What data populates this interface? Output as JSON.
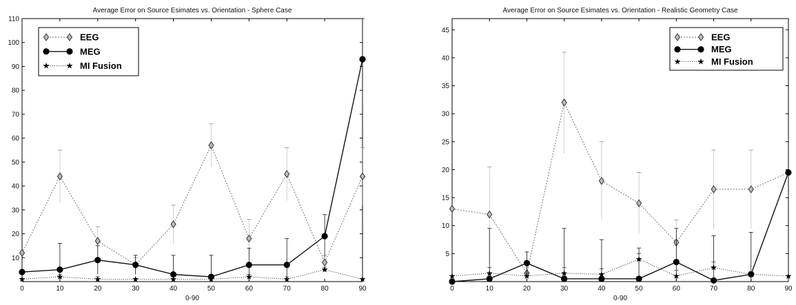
{
  "chart_data": [
    {
      "type": "line",
      "title": "Average Error on Source Esimates vs. Orientation - Sphere Case",
      "xlabel": "0-90",
      "ylabel": "",
      "x": [
        0,
        10,
        20,
        30,
        40,
        50,
        60,
        70,
        80,
        90
      ],
      "xlim": [
        0,
        90
      ],
      "ylim": [
        0,
        110
      ],
      "xticks": [
        "0",
        "10",
        "20",
        "30",
        "40",
        "50",
        "60",
        "70",
        "80",
        "90"
      ],
      "yticks": [
        "10",
        "20",
        "30",
        "40",
        "50",
        "60",
        "70",
        "80",
        "90",
        "100",
        "110"
      ],
      "legend_position": "top-left",
      "series": [
        {
          "name": "EEG",
          "marker": "diamond",
          "values": [
            12,
            44,
            17,
            7,
            24,
            57,
            18,
            45,
            8,
            44
          ],
          "err": [
            0,
            11,
            6,
            3,
            8,
            9,
            8,
            11,
            3,
            12
          ]
        },
        {
          "name": "MEG",
          "marker": "circle",
          "values": [
            4,
            5,
            9,
            7,
            3,
            2,
            7,
            7,
            19,
            93
          ],
          "err": [
            0,
            11,
            6,
            4,
            8,
            9,
            7,
            11,
            9,
            17
          ]
        },
        {
          "name": "MI Fusion",
          "marker": "star",
          "values": [
            1,
            2,
            1,
            1,
            1,
            1,
            2,
            1,
            5,
            1
          ],
          "err": [
            0,
            1,
            1,
            0,
            1,
            1,
            1,
            1,
            1,
            0
          ]
        }
      ]
    },
    {
      "type": "line",
      "title": "Average Error on Source Esimates vs. Orientation - Realistic Geometry Case",
      "xlabel": "0-90",
      "ylabel": "",
      "x": [
        0,
        10,
        20,
        30,
        40,
        50,
        60,
        70,
        80,
        90
      ],
      "xlim": [
        0,
        90
      ],
      "ylim": [
        0,
        47
      ],
      "xticks": [
        "0",
        "10",
        "20",
        "30",
        "40",
        "50",
        "60",
        "70",
        "80",
        "90"
      ],
      "yticks": [
        "5",
        "10",
        "15",
        "20",
        "25",
        "30",
        "35",
        "40",
        "45"
      ],
      "legend_position": "top-right",
      "series": [
        {
          "name": "EEG",
          "marker": "diamond",
          "values": [
            13,
            12,
            1.5,
            32,
            18,
            14,
            7,
            16.5,
            16.5,
            19.5
          ],
          "err": [
            0,
            8.5,
            1,
            9,
            7,
            5.5,
            4,
            7,
            7,
            0
          ]
        },
        {
          "name": "MEG",
          "marker": "circle",
          "values": [
            0,
            0.5,
            3.3,
            0.5,
            0.5,
            0.5,
            3.5,
            0.2,
            1.3,
            19.5
          ],
          "err": [
            0,
            9,
            2,
            9,
            7,
            5.5,
            6,
            8,
            7.5,
            0
          ]
        },
        {
          "name": "MI Fusion",
          "marker": "star",
          "values": [
            1,
            1.5,
            1,
            1.5,
            1.3,
            4,
            1,
            2.5,
            1.3,
            1
          ],
          "err": [
            0,
            1,
            0.5,
            1,
            1,
            1,
            1,
            1,
            0.5,
            0
          ]
        }
      ]
    }
  ]
}
